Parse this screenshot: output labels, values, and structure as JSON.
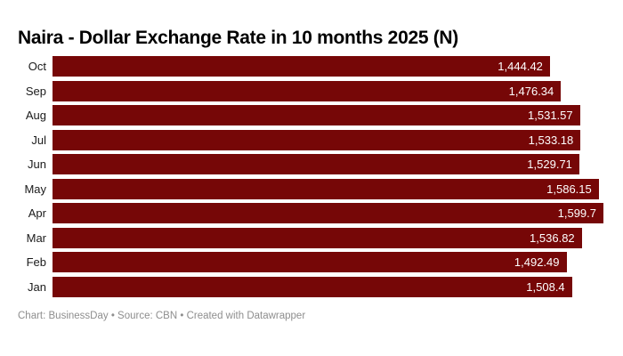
{
  "title": "Naira - Dollar Exchange Rate in 10 months 2025 (N)",
  "footer": "Chart: BusinessDay • Source: CBN • Created with Datawrapper",
  "colors": {
    "bar": "#760707",
    "value_label": "#ffffff",
    "category_label": "#1a1a1a",
    "title_text": "#000000",
    "footer_text": "#8e8e8e",
    "background": "#ffffff"
  },
  "chart_data": {
    "type": "bar",
    "orientation": "horizontal",
    "title": "Naira - Dollar Exchange Rate in 10 months 2025 (N)",
    "categories": [
      "Oct",
      "Sep",
      "Aug",
      "Jul",
      "Jun",
      "May",
      "Apr",
      "Mar",
      "Feb",
      "Jan"
    ],
    "values": [
      1444.42,
      1476.34,
      1531.57,
      1533.18,
      1529.71,
      1586.15,
      1599.7,
      1536.82,
      1492.49,
      1508.4
    ],
    "value_labels": [
      "1,444.42",
      "1,476.34",
      "1,531.57",
      "1,533.18",
      "1,529.71",
      "1,586.15",
      "1,599.7",
      "1,536.82",
      "1,492.49",
      "1,508.4"
    ],
    "xlabel": "",
    "ylabel": "",
    "xlim": [
      0,
      1599.7
    ],
    "grid": false,
    "legend": false,
    "value_labels_position": "inside-end",
    "footer": "Chart: BusinessDay • Source: CBN • Created with Datawrapper"
  }
}
